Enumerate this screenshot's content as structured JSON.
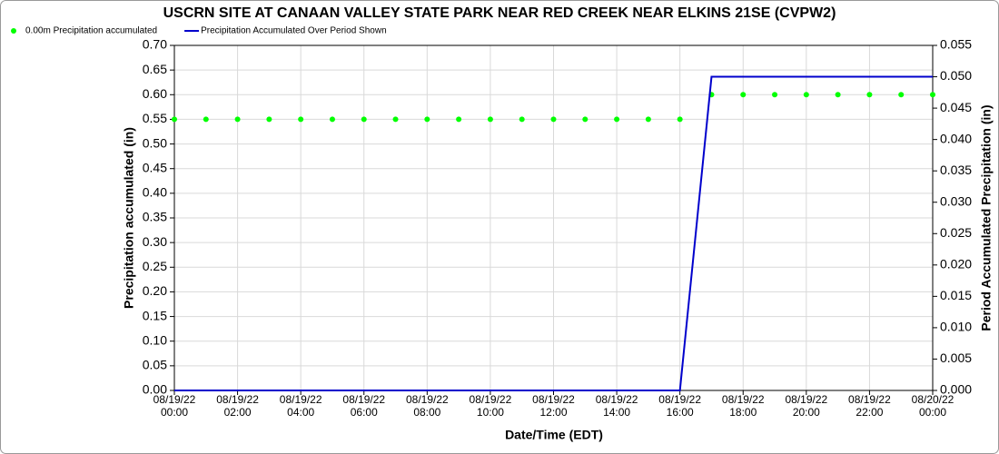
{
  "chart_data": {
    "type": "line",
    "title": "USCRN SITE AT CANAAN VALLEY STATE PARK NEAR RED CREEK NEAR ELKINS 21SE (CVPW2)",
    "x_label": "Date/Time (EDT)",
    "y_label": "Precipitation accumulated (in)",
    "y2_label": "Period Accumulated Precipitation (in)",
    "x": [
      0,
      1,
      2,
      3,
      4,
      5,
      6,
      7,
      8,
      9,
      10,
      11,
      12,
      13,
      14,
      15,
      16,
      17,
      18,
      19,
      20,
      21,
      22,
      23,
      24
    ],
    "xlim": [
      0,
      24
    ],
    "xticks": [
      {
        "value": 0,
        "label": "08/19/22 00:00"
      },
      {
        "value": 2,
        "label": "08/19/22 02:00"
      },
      {
        "value": 4,
        "label": "08/19/22 04:00"
      },
      {
        "value": 6,
        "label": "08/19/22 06:00"
      },
      {
        "value": 8,
        "label": "08/19/22 08:00"
      },
      {
        "value": 10,
        "label": "08/19/22 10:00"
      },
      {
        "value": 12,
        "label": "08/19/22 12:00"
      },
      {
        "value": 14,
        "label": "08/19/22 14:00"
      },
      {
        "value": 16,
        "label": "08/19/22 16:00"
      },
      {
        "value": 18,
        "label": "08/19/22 18:00"
      },
      {
        "value": 20,
        "label": "08/19/22 20:00"
      },
      {
        "value": 22,
        "label": "08/19/22 22:00"
      },
      {
        "value": 24,
        "label": "08/20/22 00:00"
      }
    ],
    "ylim": [
      0,
      0.7
    ],
    "yticks": [
      {
        "value": 0,
        "label": "0.00"
      },
      0.05,
      {
        "value": 0.1,
        "label": "0.10"
      },
      0.15,
      {
        "value": 0.2,
        "label": "0.20"
      },
      0.25,
      {
        "value": 0.3,
        "label": "0.30"
      },
      0.35,
      {
        "value": 0.4,
        "label": "0.40"
      },
      0.45,
      {
        "value": 0.5,
        "label": "0.50"
      },
      0.55,
      {
        "value": 0.6,
        "label": "0.60"
      },
      0.65,
      {
        "value": 0.7,
        "label": "0.70"
      }
    ],
    "y2lim": [
      0,
      0.055
    ],
    "y2ticks": [
      {
        "value": 0,
        "label": "0.000"
      },
      0.005,
      {
        "value": 0.01,
        "label": "0.010"
      },
      0.015,
      {
        "value": 0.02,
        "label": "0.020"
      },
      0.025,
      {
        "value": 0.03,
        "label": "0.030"
      },
      0.035,
      {
        "value": 0.04,
        "label": "0.040"
      },
      0.045,
      {
        "value": 0.05,
        "label": "0.050"
      },
      0.055
    ],
    "grid": true,
    "series": [
      {
        "name": "0.00m Precipitation accumulated",
        "color": "#00ff00",
        "marker": "dot",
        "values": [
          0.55,
          0.55,
          0.55,
          0.55,
          0.55,
          0.55,
          0.55,
          0.55,
          0.55,
          0.55,
          0.55,
          0.55,
          0.55,
          0.55,
          0.55,
          0.55,
          0.55,
          0.6,
          0.6,
          0.6,
          0.6,
          0.6,
          0.6,
          0.6,
          0.6
        ]
      },
      {
        "name": "Precipitation Accumulated Over Period Shown",
        "color": "#0000cc",
        "marker": "line",
        "axis": "y2",
        "values": [
          0,
          0,
          0,
          0,
          0,
          0,
          0,
          0,
          0,
          0,
          0,
          0,
          0,
          0,
          0,
          0,
          0,
          0.05,
          0.05,
          0.05,
          0.05,
          0.05,
          0.05,
          0.05,
          0.05
        ]
      }
    ]
  }
}
